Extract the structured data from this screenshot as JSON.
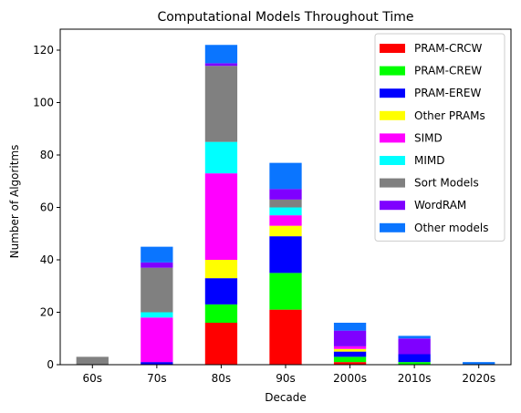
{
  "chart_data": {
    "type": "bar",
    "stacked": true,
    "title": "Computational Models Throughout Time",
    "xlabel": "Decade",
    "ylabel": "Number of Algoritms",
    "categories": [
      "60s",
      "70s",
      "80s",
      "90s",
      "2000s",
      "2010s",
      "2020s"
    ],
    "ylim": [
      0,
      128
    ],
    "yticks": [
      0,
      20,
      40,
      60,
      80,
      100,
      120
    ],
    "grid": false,
    "legend_position": "top-right",
    "series": [
      {
        "name": "PRAM-CRCW",
        "color": "#ff0000",
        "values": [
          0,
          0,
          16,
          21,
          1,
          0,
          0
        ]
      },
      {
        "name": "PRAM-CREW",
        "color": "#00ff00",
        "values": [
          0,
          0,
          7,
          14,
          2,
          1,
          0
        ]
      },
      {
        "name": "PRAM-EREW",
        "color": "#0000ff",
        "values": [
          0,
          1,
          10,
          14,
          2,
          3,
          0
        ]
      },
      {
        "name": "Other PRAMs",
        "color": "#ffff00",
        "values": [
          0,
          0,
          7,
          4,
          1,
          0,
          0
        ]
      },
      {
        "name": "SIMD",
        "color": "#ff00ff",
        "values": [
          0,
          17,
          33,
          4,
          1,
          0,
          0
        ]
      },
      {
        "name": "MIMD",
        "color": "#00ffff",
        "values": [
          0,
          2,
          12,
          3,
          0,
          0,
          0
        ]
      },
      {
        "name": "Sort Models",
        "color": "#808080",
        "values": [
          3,
          17,
          29,
          3,
          0,
          0,
          0
        ]
      },
      {
        "name": "WordRAM",
        "color": "#7f00ff",
        "values": [
          0,
          2,
          1,
          4,
          6,
          6,
          0
        ]
      },
      {
        "name": "Other models",
        "color": "#0a75ff",
        "values": [
          0,
          6,
          7,
          10,
          3,
          1,
          1
        ]
      }
    ]
  }
}
